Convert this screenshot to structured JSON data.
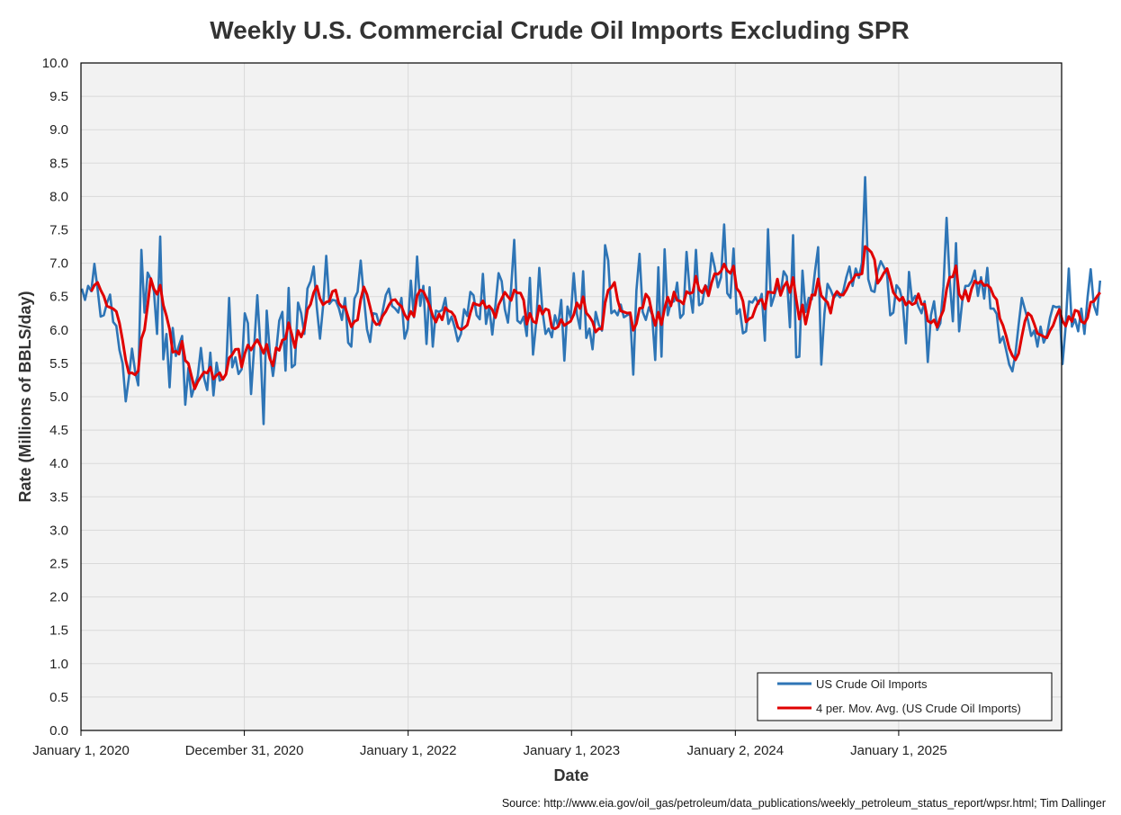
{
  "chart_data": {
    "type": "line",
    "title": "Weekly U.S. Commercial Crude Oil Imports Excluding SPR",
    "xlabel": "Date",
    "ylabel": "Rate (Millions of BBLS/day)",
    "source": "Source: http://www.eia.gov/oil_gas/petroleum/data_publications/weekly_petroleum_status_report/wpsr.html; Tim Dallinger",
    "ylim": [
      0,
      10
    ],
    "y_ticks": [
      "0.0",
      "0.5",
      "1.0",
      "1.5",
      "2.0",
      "2.5",
      "3.0",
      "3.5",
      "4.0",
      "4.5",
      "5.0",
      "5.5",
      "6.0",
      "6.5",
      "7.0",
      "7.5",
      "8.0",
      "8.5",
      "9.0",
      "9.5",
      "10.0"
    ],
    "x_start": "2020-01-01",
    "x_end": "2025-12-31",
    "x_ticks": [
      {
        "date": "2020-01-01",
        "label": "January 1, 2020"
      },
      {
        "date": "2020-12-31",
        "label": "December 31, 2020"
      },
      {
        "date": "2022-01-01",
        "label": "January 1, 2022"
      },
      {
        "date": "2023-01-01",
        "label": "January 1, 2023"
      },
      {
        "date": "2024-01-02",
        "label": "January 2, 2024"
      },
      {
        "date": "2025-01-01",
        "label": "January 1, 2025"
      }
    ],
    "grid": true,
    "legend_position": "bottom-right",
    "series": [
      {
        "name": "US Crude Oil Imports",
        "color": "#2E75B6",
        "start": "2020-01-03",
        "step_days": 7,
        "values": [
          6.62,
          6.45,
          6.66,
          6.58,
          6.99,
          6.62,
          6.2,
          6.22,
          6.4,
          6.53,
          6.12,
          6.06,
          5.7,
          5.5,
          4.93,
          5.28,
          5.72,
          5.38,
          5.17,
          7.2,
          6.26,
          6.86,
          6.76,
          6.58,
          5.94,
          7.4,
          5.56,
          5.94,
          5.14,
          6.03,
          5.61,
          5.77,
          5.91,
          4.88,
          5.43,
          5.0,
          5.16,
          5.31,
          5.73,
          5.28,
          5.1,
          5.66,
          5.02,
          5.51,
          5.24,
          5.27,
          5.33,
          6.48,
          5.44,
          5.59,
          5.34,
          5.41,
          6.25,
          6.1,
          5.04,
          5.75,
          6.52,
          5.74,
          4.59,
          6.29,
          5.66,
          5.31,
          5.67,
          6.14,
          6.27,
          5.39,
          6.63,
          5.44,
          5.48,
          6.41,
          6.25,
          5.94,
          6.62,
          6.73,
          6.95,
          6.33,
          5.87,
          6.36,
          7.11,
          6.39,
          6.45,
          6.44,
          6.33,
          6.15,
          6.48,
          5.81,
          5.75,
          6.47,
          6.57,
          7.04,
          6.5,
          6.01,
          5.82,
          6.25,
          6.24,
          6.07,
          6.28,
          6.52,
          6.62,
          6.36,
          6.32,
          6.26,
          6.48,
          5.87,
          6.02,
          6.74,
          6.19,
          7.1,
          6.36,
          6.66,
          5.79,
          6.64,
          5.75,
          6.29,
          6.27,
          6.3,
          6.48,
          6.09,
          6.2,
          6.04,
          5.83,
          5.94,
          6.31,
          6.21,
          6.57,
          6.52,
          6.22,
          6.16,
          6.84,
          6.09,
          6.35,
          5.93,
          6.37,
          6.85,
          6.73,
          6.31,
          6.11,
          6.62,
          7.35,
          6.14,
          6.1,
          6.2,
          5.91,
          6.78,
          5.63,
          6.1,
          6.93,
          6.29,
          5.94,
          6.02,
          5.89,
          6.22,
          6.06,
          6.45,
          5.54,
          6.35,
          6.18,
          6.85,
          6.24,
          6.02,
          6.88,
          5.88,
          6.02,
          5.71,
          6.27,
          6.08,
          5.99,
          7.27,
          7.04,
          6.25,
          6.29,
          6.22,
          6.38,
          6.19,
          6.22,
          6.24,
          5.33,
          6.59,
          7.14,
          6.27,
          6.15,
          6.34,
          6.23,
          5.55,
          6.94,
          5.6,
          7.21,
          6.22,
          6.41,
          6.43,
          6.71,
          6.18,
          6.24,
          7.17,
          6.59,
          6.26,
          7.2,
          6.37,
          6.4,
          6.67,
          6.61,
          7.15,
          6.94,
          6.64,
          6.79,
          7.58,
          6.55,
          6.48,
          7.22,
          6.24,
          6.31,
          5.95,
          5.98,
          6.43,
          6.41,
          6.49,
          6.39,
          6.54,
          5.84,
          7.51,
          6.36,
          6.51,
          6.67,
          6.53,
          6.88,
          6.8,
          6.04,
          7.42,
          5.59,
          5.6,
          6.89,
          6.27,
          6.48,
          6.46,
          6.88,
          7.24,
          5.48,
          6.24,
          6.69,
          6.6,
          6.48,
          6.54,
          6.49,
          6.58,
          6.79,
          6.95,
          6.66,
          6.92,
          6.78,
          7.01,
          8.29,
          6.76,
          6.59,
          6.57,
          6.88,
          7.03,
          6.94,
          6.83,
          6.22,
          6.26,
          6.67,
          6.61,
          6.42,
          5.8,
          6.87,
          6.43,
          6.51,
          6.35,
          6.25,
          6.43,
          5.52,
          6.22,
          6.43,
          6.0,
          6.1,
          6.65,
          7.68,
          6.73,
          6.13,
          7.3,
          5.98,
          6.43,
          6.66,
          6.66,
          6.73,
          6.89,
          6.51,
          6.79,
          6.47,
          6.93,
          6.32,
          6.32,
          6.24,
          5.81,
          5.9,
          5.7,
          5.48,
          5.38,
          5.65,
          6.08,
          6.48,
          6.31,
          6.14,
          5.91,
          5.99,
          5.75,
          6.05,
          5.81,
          5.92,
          6.18,
          6.36,
          6.34,
          6.35,
          5.49,
          6.05,
          6.92,
          6.05,
          6.16,
          5.98,
          6.32,
          5.94,
          6.49,
          6.91,
          6.37,
          6.23,
          6.74
        ]
      },
      {
        "name": "4 per. Mov. Avg. (US Crude Oil Imports)",
        "color": "#E00000",
        "moving_average_of": 0,
        "period": 4
      }
    ]
  }
}
